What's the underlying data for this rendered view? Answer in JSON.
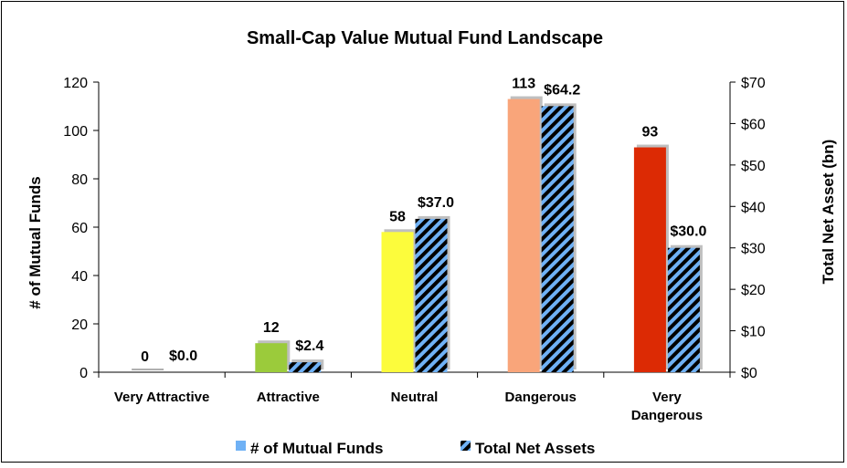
{
  "chart_data": {
    "type": "bar",
    "title": "Small-Cap Value Mutual Fund Landscape",
    "categories": [
      "Very Attractive",
      "Attractive",
      "Neutral",
      "Dangerous",
      "Very Dangerous"
    ],
    "category_lines": [
      [
        "Very Attractive"
      ],
      [
        "Attractive"
      ],
      [
        "Neutral"
      ],
      [
        "Dangerous"
      ],
      [
        "Very",
        "Dangerous"
      ]
    ],
    "ylabel": "# of Mutual Funds",
    "y2label": "Total Net Asset (bn)",
    "ylim": [
      0,
      120
    ],
    "y2lim": [
      0,
      70
    ],
    "yticks": [
      "0",
      "20",
      "40",
      "60",
      "80",
      "100",
      "120"
    ],
    "y2ticks": [
      "$0",
      "$10",
      "$20",
      "$30",
      "$40",
      "$50",
      "$60",
      "$70"
    ],
    "grid": false,
    "legend_position": "bottom",
    "series": [
      {
        "name": "# of Mutual Funds",
        "axis": "left",
        "values": [
          0,
          12,
          58,
          113,
          93
        ],
        "labels": [
          "0",
          "12",
          "58",
          "113",
          "93"
        ],
        "colors": [
          "#b0b0b0",
          "#9bcb3b",
          "#fcfc3c",
          "#f9a57a",
          "#dc2a04"
        ],
        "legend_color": "#6fb1f5"
      },
      {
        "name": "Total Net Assets",
        "axis": "right",
        "values": [
          0.0,
          2.4,
          37.0,
          64.2,
          30.0
        ],
        "labels": [
          "$0.0",
          "$2.4",
          "$37.0",
          "$64.2",
          "$30.0"
        ],
        "pattern": "diagonal stripes",
        "colors": [
          "#6fb1f5",
          "#000000"
        ]
      }
    ]
  }
}
